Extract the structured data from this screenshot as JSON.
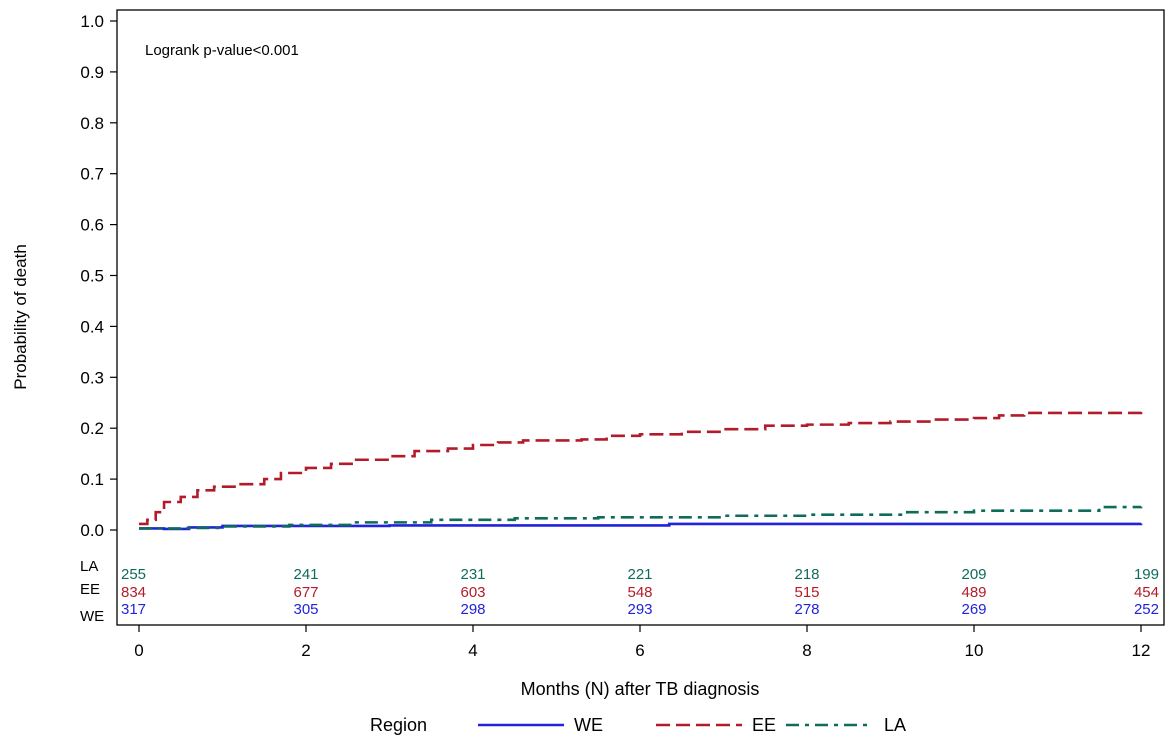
{
  "chart_data": {
    "type": "line",
    "title": "",
    "xlabel": "Months (N) after TB diagnosis",
    "ylabel": "Probability of death",
    "xlim": [
      0,
      12
    ],
    "ylim": [
      0,
      1
    ],
    "x_ticks": [
      "0",
      "2",
      "4",
      "6",
      "8",
      "10",
      "12"
    ],
    "y_ticks": [
      "0.0",
      "0.1",
      "0.2",
      "0.3",
      "0.4",
      "0.5",
      "0.6",
      "0.7",
      "0.8",
      "0.9",
      "1.0"
    ],
    "annotation": "Logrank p-value<0.001",
    "legend": {
      "title": "Region",
      "placement": "bottom"
    },
    "series": [
      {
        "name": "WE",
        "color": "#2222dd",
        "dash": "solid",
        "points": [
          [
            0,
            0.003
          ],
          [
            0.3,
            0.002
          ],
          [
            0.6,
            0.005
          ],
          [
            1.0,
            0.008
          ],
          [
            3.0,
            0.009
          ],
          [
            6.35,
            0.009
          ],
          [
            6.35,
            0.012
          ],
          [
            12,
            0.013
          ]
        ]
      },
      {
        "name": "EE",
        "color": "#b21c2a",
        "dash": "dashed",
        "points": [
          [
            0,
            0.012
          ],
          [
            0.1,
            0.02
          ],
          [
            0.2,
            0.035
          ],
          [
            0.3,
            0.055
          ],
          [
            0.5,
            0.065
          ],
          [
            0.7,
            0.078
          ],
          [
            0.9,
            0.085
          ],
          [
            1.2,
            0.09
          ],
          [
            1.5,
            0.1
          ],
          [
            1.7,
            0.112
          ],
          [
            2.0,
            0.122
          ],
          [
            2.3,
            0.13
          ],
          [
            2.6,
            0.138
          ],
          [
            3.0,
            0.145
          ],
          [
            3.3,
            0.155
          ],
          [
            3.7,
            0.16
          ],
          [
            4.0,
            0.167
          ],
          [
            4.3,
            0.172
          ],
          [
            4.6,
            0.176
          ],
          [
            5.0,
            0.176
          ],
          [
            5.3,
            0.178
          ],
          [
            5.6,
            0.185
          ],
          [
            6.0,
            0.188
          ],
          [
            6.5,
            0.193
          ],
          [
            7.0,
            0.198
          ],
          [
            7.5,
            0.205
          ],
          [
            8.0,
            0.207
          ],
          [
            8.5,
            0.21
          ],
          [
            9.0,
            0.213
          ],
          [
            9.5,
            0.217
          ],
          [
            10.0,
            0.22
          ],
          [
            10.3,
            0.225
          ],
          [
            10.6,
            0.23
          ],
          [
            11.0,
            0.23
          ],
          [
            12,
            0.233
          ]
        ]
      },
      {
        "name": "LA",
        "color": "#0f6b5a",
        "dash": "dashdot",
        "points": [
          [
            0,
            0.003
          ],
          [
            0.5,
            0.004
          ],
          [
            1.0,
            0.007
          ],
          [
            1.8,
            0.01
          ],
          [
            2.6,
            0.015
          ],
          [
            3.5,
            0.02
          ],
          [
            4.5,
            0.023
          ],
          [
            5.5,
            0.025
          ],
          [
            7.0,
            0.028
          ],
          [
            8.0,
            0.03
          ],
          [
            9.2,
            0.03
          ],
          [
            9.2,
            0.035
          ],
          [
            10.0,
            0.038
          ],
          [
            11.5,
            0.038
          ],
          [
            11.5,
            0.045
          ],
          [
            12,
            0.046
          ]
        ]
      }
    ],
    "risk_table": {
      "times": [
        0,
        2,
        4,
        6,
        8,
        10,
        12
      ],
      "rows": [
        {
          "label": "LA",
          "color": "#0f6b5a",
          "counts": [
            "255",
            "241",
            "231",
            "221",
            "218",
            "209",
            "199"
          ]
        },
        {
          "label": "EE",
          "color": "#b21c2a",
          "counts": [
            "834",
            "677",
            "603",
            "548",
            "515",
            "489",
            "454"
          ]
        },
        {
          "label": "WE",
          "color": "#2222dd",
          "counts": [
            "317",
            "305",
            "298",
            "293",
            "278",
            "269",
            "252"
          ]
        }
      ]
    }
  }
}
